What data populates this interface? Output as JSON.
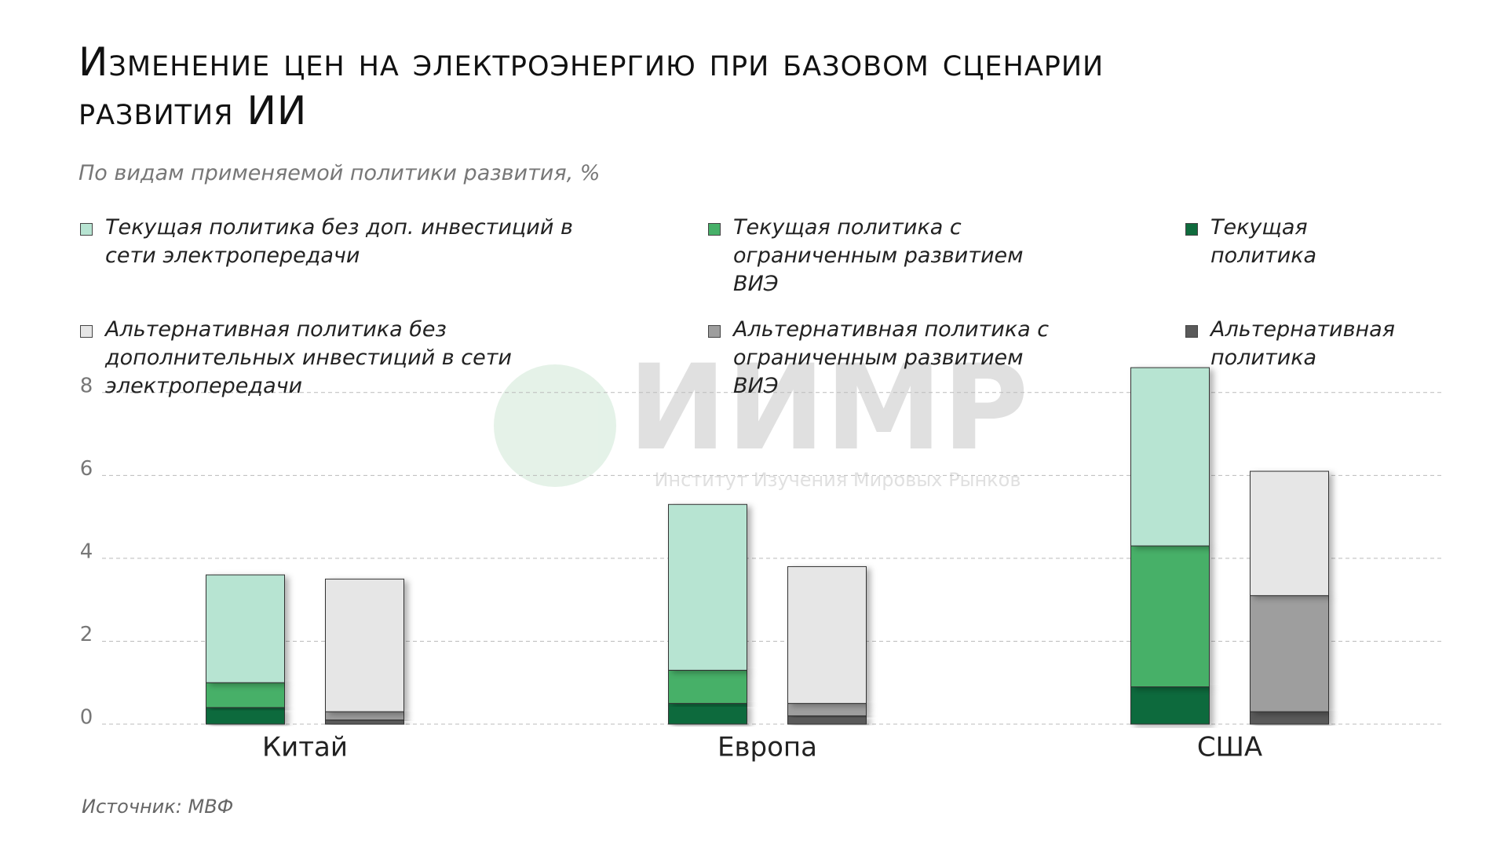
{
  "chart_data": {
    "type": "bar",
    "title": "Изменение цен на электроэнергию при базовом сценарии развития ИИ",
    "subtitle": "По видам применяемой политики развития, %",
    "source": "Источник: МВФ",
    "watermark": {
      "logo": "ИИМР",
      "text": "Институт Изучения Мировых Рынков"
    },
    "categories": [
      "Китай",
      "Европа",
      "США"
    ],
    "stacked": true,
    "series": [
      {
        "name": "Текущая политика",
        "color": "#0f6b3d",
        "stack": 0,
        "values": [
          0.4,
          0.5,
          0.9
        ]
      },
      {
        "name": "Текущая политика с ограниченным развитием ВИЭ",
        "color": "#46b068",
        "stack": 0,
        "values": [
          0.6,
          0.8,
          3.4
        ]
      },
      {
        "name": "Текущая политика без доп. инвестиций в сети электропередачи",
        "color": "#b7e4d2",
        "stack": 0,
        "values": [
          2.6,
          4.0,
          4.3
        ]
      },
      {
        "name": "Альтернативная политика",
        "color": "#5a5a5a",
        "stack": 1,
        "values": [
          0.1,
          0.2,
          0.3
        ]
      },
      {
        "name": "Альтернативная политика с ограниченным развитием ВИЭ",
        "color": "#9e9e9e",
        "stack": 1,
        "values": [
          0.2,
          0.3,
          2.8
        ]
      },
      {
        "name": "Альтернативная политика без дополнительных инвестиций в сети электропередачи",
        "color": "#e6e6e6",
        "stack": 1,
        "values": [
          3.2,
          3.3,
          3.0
        ]
      }
    ],
    "ylim": [
      0,
      9
    ],
    "yticks": [
      0,
      2,
      4,
      6,
      8
    ],
    "grid": true
  }
}
